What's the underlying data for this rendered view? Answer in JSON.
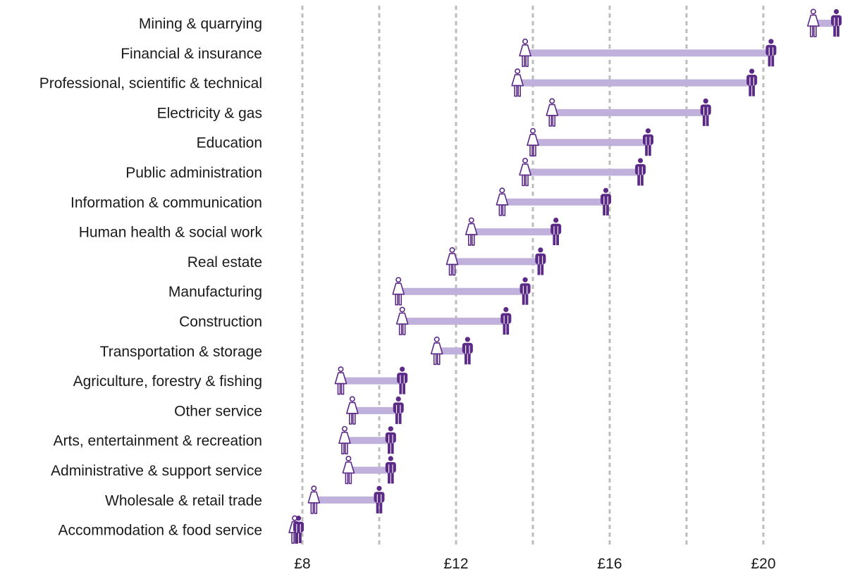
{
  "chart_data": {
    "type": "dumbbell",
    "title": "",
    "xlabel": "",
    "ylabel": "",
    "xlim": [
      7.5,
      22.0
    ],
    "x_ticks": [
      8,
      12,
      16,
      20
    ],
    "x_tick_labels": [
      "£8",
      "£12",
      "£16",
      "£20"
    ],
    "x_grid": [
      8,
      10,
      12,
      14,
      16,
      18,
      20
    ],
    "grid": true,
    "categories": [
      "Mining & quarrying",
      "Financial & insurance",
      "Professional, scientific & technical",
      "Electricity & gas",
      "Education",
      "Public administration",
      "Information & communication",
      "Human health & social work",
      "Real estate",
      "Manufacturing",
      "Construction",
      "Transportation & storage",
      "Agriculture, forestry & fishing",
      "Other service",
      "Arts, entertainment & recreation",
      "Administrative & support service",
      "Wholesale & retail trade",
      "Accommodation & food service"
    ],
    "series": [
      {
        "marker": "woman-icon",
        "values": [
          21.3,
          13.8,
          13.6,
          14.5,
          14.0,
          13.8,
          13.2,
          12.4,
          11.9,
          10.5,
          10.6,
          11.5,
          9.0,
          9.3,
          9.1,
          9.2,
          8.3,
          7.8
        ]
      },
      {
        "marker": "man-icon",
        "values": [
          21.9,
          20.2,
          19.7,
          18.5,
          17.0,
          16.8,
          15.9,
          14.6,
          14.2,
          13.8,
          13.3,
          12.3,
          10.6,
          10.5,
          10.3,
          10.3,
          10.0,
          7.9
        ]
      }
    ],
    "colors": {
      "women_outline": "#5b2a86",
      "men_fill": "#5b2a86",
      "gap_bar": "#bfb1dc",
      "grid": "#bdbdbd",
      "text": "#1a1a1a"
    }
  }
}
